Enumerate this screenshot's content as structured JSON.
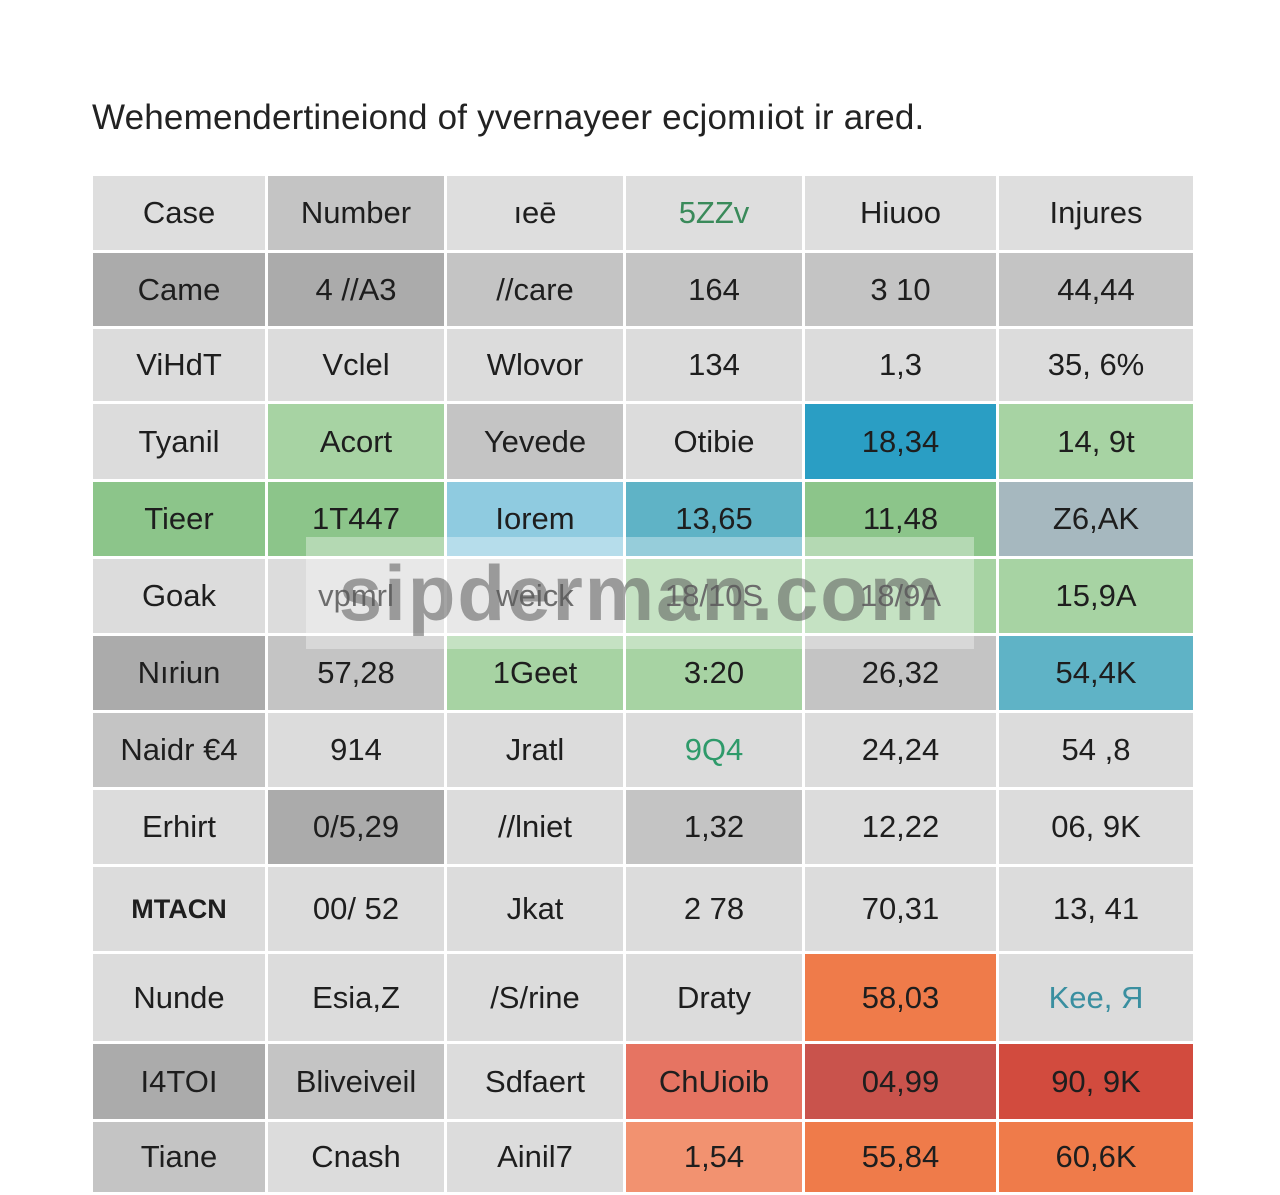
{
  "title": "Wehemendertineiond of yvernayeer ecjomıiot ir ared.",
  "watermark": "sipderman.com",
  "table": {
    "headers": [
      "Case",
      "Number",
      "ıeē",
      "5ZZv",
      "Hiuoo",
      "Injures"
    ],
    "rows": [
      [
        "Came",
        "4 //A3",
        "//care",
        "164",
        "3 10",
        "44,44"
      ],
      [
        "ViHdT",
        "Vclel",
        "Wlovor",
        "134",
        "1,3",
        "35, 6%"
      ],
      [
        "Tyanil",
        "Acort",
        "Yevede",
        "Otibie",
        "18,34",
        "14, 9t"
      ],
      [
        "Tieer",
        "1T447",
        "Iorem",
        "13,65",
        "11,48",
        "Z6,AK"
      ],
      [
        "Goak",
        "vpmrl",
        "weick",
        "18/10S",
        "18/9A",
        "15,9A"
      ],
      [
        "Nıriun",
        "57,28",
        "1Geet",
        "3:20",
        "26,32",
        "54,4K"
      ],
      [
        "Naidr €4",
        "914",
        "Jratl",
        "9Q4",
        "24,24",
        "54 ,8"
      ],
      [
        "Erhirt",
        "0/5,29",
        "//lniet",
        "1,32",
        "12,22",
        "06, 9K"
      ],
      [
        "MTACN",
        "00/ 52",
        "Jkat",
        "2 78",
        "70,31",
        "13, 41"
      ],
      [
        "Nunde",
        "Esia,Z",
        "/S/rine",
        "Draty",
        "58,03",
        "Kee, Я"
      ],
      [
        "I4TOI",
        "Bliveiveil",
        "Sdfaert",
        "ChUioib",
        "04,99",
        "90, 9K"
      ],
      [
        "Tiane",
        "Cnash",
        "Ainil7",
        "1,54",
        "55,84",
        "60,6K"
      ]
    ]
  },
  "colors": {
    "header": "#dedede",
    "light": "#dcdcdc",
    "mid": "#c4c4c4",
    "dark": "#ababab",
    "green": "#a7d3a3",
    "teal": "#5fb3c6",
    "blue": "#2a9ec4",
    "orange": "#ef7b4a",
    "red": "#d24b3e"
  }
}
